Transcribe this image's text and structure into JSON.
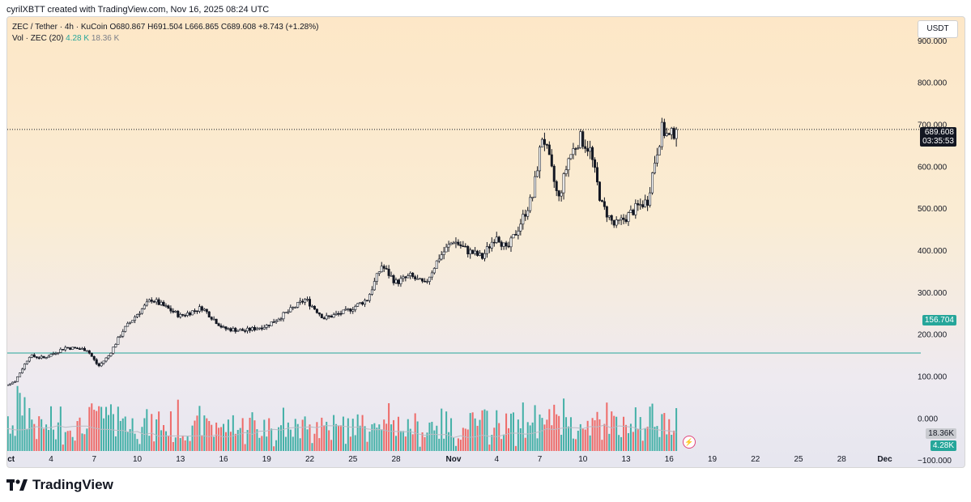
{
  "header": {
    "credit": "cyrilXBTT created with TradingView.com, Nov 16, 2025 08:24 UTC"
  },
  "legend": {
    "symbol_line": "ZEC / Tether · 4h · KuCoin",
    "open": "O680.867",
    "high": "H691.504",
    "low": "L666.865",
    "close": "C689.608",
    "change": "+8.743 (+1.28%)",
    "vol_label": "Vol · ZEC (20)",
    "vol_value": "4.28 K",
    "vol_avg": "18.36 K"
  },
  "currency": "USDT",
  "price_tags": {
    "last_price": "689.608",
    "countdown": "03:35:53",
    "horizontal_line": "156.704",
    "volume_avg": "18.36K",
    "volume_last": "4.28K"
  },
  "footer": {
    "logo_icon": "tradingview-logo-icon",
    "brand": "TradingView"
  },
  "colors": {
    "up": "#26a69a",
    "down": "#ef5350",
    "candle_body": "#131722",
    "horizontal_line": "#26a69a"
  },
  "chart_data": {
    "type": "candlestick",
    "interval": "4h",
    "ylim": [
      -150,
      1000
    ],
    "y_ticks": [
      {
        "value": 900,
        "label": "900.000"
      },
      {
        "value": 800,
        "label": "800.000"
      },
      {
        "value": 700,
        "label": "700.000"
      },
      {
        "value": 600,
        "label": "600.000"
      },
      {
        "value": 500,
        "label": "500.000"
      },
      {
        "value": 400,
        "label": "400.000"
      },
      {
        "value": 300,
        "label": "300.000"
      },
      {
        "value": 200,
        "label": "200.000"
      },
      {
        "value": 100,
        "label": "100.000"
      },
      {
        "value": 0,
        "label": "0.000"
      },
      {
        "value": -100,
        "label": "−100.000"
      }
    ],
    "x_ticks": [
      {
        "day": 1,
        "label": "Oct"
      },
      {
        "day": 4,
        "label": "4"
      },
      {
        "day": 7,
        "label": "7"
      },
      {
        "day": 10,
        "label": "10"
      },
      {
        "day": 13,
        "label": "13"
      },
      {
        "day": 16,
        "label": "16"
      },
      {
        "day": 19,
        "label": "19"
      },
      {
        "day": 22,
        "label": "22"
      },
      {
        "day": 25,
        "label": "25"
      },
      {
        "day": 28,
        "label": "28"
      },
      {
        "day": 32,
        "label": "Nov"
      },
      {
        "day": 35,
        "label": "4"
      },
      {
        "day": 38,
        "label": "7"
      },
      {
        "day": 41,
        "label": "10"
      },
      {
        "day": 44,
        "label": "13"
      },
      {
        "day": 47,
        "label": "16"
      },
      {
        "day": 50,
        "label": "19"
      },
      {
        "day": 53,
        "label": "22"
      },
      {
        "day": 56,
        "label": "25"
      },
      {
        "day": 59,
        "label": "28"
      },
      {
        "day": 62,
        "label": "Dec"
      }
    ],
    "horizontal_line_value": 156.704,
    "last_price": 689.608,
    "close_anchors": [
      {
        "day": 0.0,
        "close": 68
      },
      {
        "day": 1.5,
        "close": 90
      },
      {
        "day": 2.5,
        "close": 150
      },
      {
        "day": 3.5,
        "close": 145
      },
      {
        "day": 5.0,
        "close": 170
      },
      {
        "day": 6.5,
        "close": 165
      },
      {
        "day": 7.3,
        "close": 125
      },
      {
        "day": 8.0,
        "close": 150
      },
      {
        "day": 9.0,
        "close": 210
      },
      {
        "day": 10.0,
        "close": 250
      },
      {
        "day": 11.0,
        "close": 285
      },
      {
        "day": 12.0,
        "close": 265
      },
      {
        "day": 13.0,
        "close": 245
      },
      {
        "day": 14.5,
        "close": 265
      },
      {
        "day": 16.0,
        "close": 215
      },
      {
        "day": 17.5,
        "close": 210
      },
      {
        "day": 19.0,
        "close": 222
      },
      {
        "day": 20.5,
        "close": 255
      },
      {
        "day": 21.7,
        "close": 285
      },
      {
        "day": 23.0,
        "close": 240
      },
      {
        "day": 24.5,
        "close": 255
      },
      {
        "day": 26.0,
        "close": 285
      },
      {
        "day": 27.0,
        "close": 365
      },
      {
        "day": 28.0,
        "close": 325
      },
      {
        "day": 29.0,
        "close": 340
      },
      {
        "day": 30.0,
        "close": 320
      },
      {
        "day": 31.0,
        "close": 385
      },
      {
        "day": 32.0,
        "close": 425
      },
      {
        "day": 33.0,
        "close": 400
      },
      {
        "day": 34.0,
        "close": 385
      },
      {
        "day": 35.0,
        "close": 440
      },
      {
        "day": 35.7,
        "close": 400
      },
      {
        "day": 36.5,
        "close": 455
      },
      {
        "day": 37.5,
        "close": 530
      },
      {
        "day": 38.2,
        "close": 680
      },
      {
        "day": 38.7,
        "close": 610
      },
      {
        "day": 39.3,
        "close": 520
      },
      {
        "day": 40.0,
        "close": 620
      },
      {
        "day": 40.8,
        "close": 670
      },
      {
        "day": 41.5,
        "close": 640
      },
      {
        "day": 42.3,
        "close": 510
      },
      {
        "day": 43.2,
        "close": 460
      },
      {
        "day": 44.0,
        "close": 480
      },
      {
        "day": 44.8,
        "close": 505
      },
      {
        "day": 45.5,
        "close": 520
      },
      {
        "day": 46.0,
        "close": 615
      },
      {
        "day": 46.5,
        "close": 690
      },
      {
        "day": 47.0,
        "close": 670
      },
      {
        "day": 47.5,
        "close": 689.6
      }
    ]
  }
}
